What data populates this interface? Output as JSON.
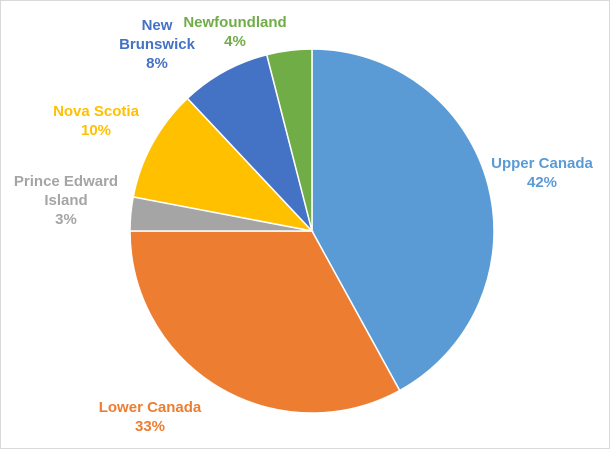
{
  "chart_data": {
    "type": "pie",
    "slices": [
      {
        "label_lines": [
          "Upper Canada"
        ],
        "percent_label": "42%",
        "value": 42,
        "color": "#5B9BD5"
      },
      {
        "label_lines": [
          "Lower Canada"
        ],
        "percent_label": "33%",
        "value": 33,
        "color": "#ED7D31"
      },
      {
        "label_lines": [
          "Prince Edward",
          "Island"
        ],
        "percent_label": "3%",
        "value": 3,
        "color": "#A5A5A5"
      },
      {
        "label_lines": [
          "Nova Scotia"
        ],
        "percent_label": "10%",
        "value": 10,
        "color": "#FFC000"
      },
      {
        "label_lines": [
          "New",
          "Brunswick"
        ],
        "percent_label": "8%",
        "value": 8,
        "color": "#4472C4"
      },
      {
        "label_lines": [
          "Newfoundland"
        ],
        "percent_label": "4%",
        "value": 4,
        "color": "#70AD47"
      }
    ],
    "start_angle": "12 o'clock",
    "direction": "clockwise",
    "legend": "none (labels placed outside slices)"
  }
}
